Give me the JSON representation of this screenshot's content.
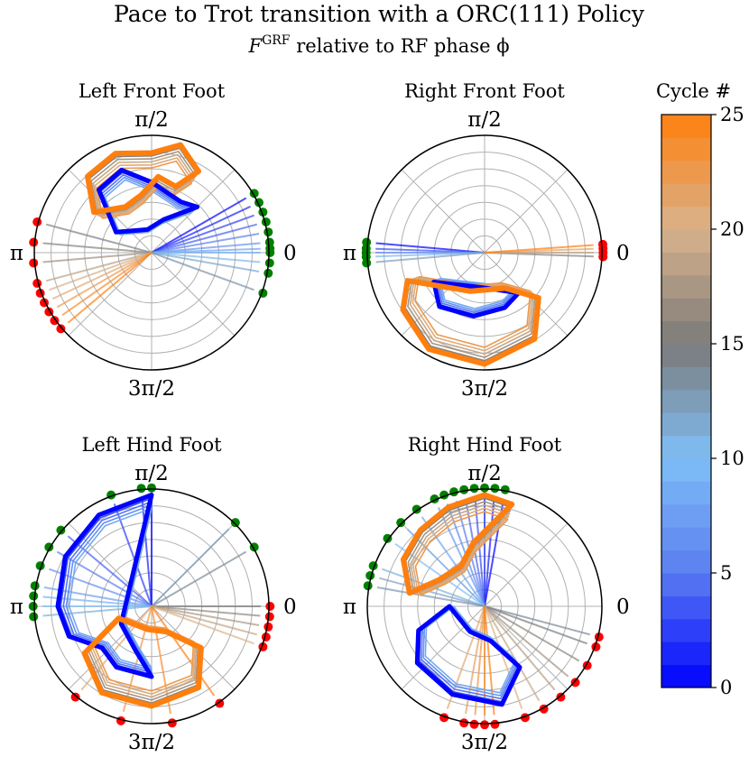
{
  "chart_data": {
    "type": "polar",
    "title": "Pace to Trot transition with a ORC(111) Policy",
    "subtitle": "F^GRF relative to RF phase ϕ",
    "subtitle_main": "F",
    "subtitle_sup": "GRF",
    "subtitle_rest": " relative to RF phase ϕ",
    "angle_labels": [
      "π/2",
      "π",
      "0",
      "3π/2"
    ],
    "grid": true,
    "colorbar": {
      "label": "Cycle #",
      "min": 0,
      "max": 25,
      "ticks": [
        0,
        5,
        10,
        15,
        20,
        25
      ],
      "colors": [
        "#0000ff",
        "#5a7df0",
        "#7fbff7",
        "#7a7a7a",
        "#d9b38c",
        "#ff7f0e"
      ]
    },
    "marker_colors": {
      "touchdown": "#008000",
      "liftoff": "#ff0000"
    },
    "panels": [
      {
        "title": "Left Front Foot",
        "touchdown_angles_deg": [
          30,
          25,
          20,
          15,
          10,
          5,
          2,
          0,
          -5,
          -10,
          -20
        ],
        "liftoff_angles_deg": [
          165,
          175,
          185,
          195,
          200,
          205,
          210,
          215,
          220
        ],
        "early_shape": [
          [
            60,
            0.5
          ],
          [
            90,
            0.6
          ],
          [
            110,
            0.75
          ],
          [
            130,
            0.7
          ],
          [
            150,
            0.35
          ],
          [
            100,
            0.2
          ],
          [
            70,
            0.3
          ],
          [
            45,
            0.55
          ]
        ],
        "late_shape": [
          [
            60,
            0.8
          ],
          [
            75,
            0.95
          ],
          [
            90,
            0.85
          ],
          [
            110,
            0.9
          ],
          [
            130,
            0.85
          ],
          [
            145,
            0.6
          ],
          [
            120,
            0.45
          ],
          [
            100,
            0.5
          ],
          [
            85,
            0.65
          ],
          [
            70,
            0.6
          ]
        ]
      },
      {
        "title": "Right Front Foot",
        "touchdown_angles_deg": [
          175,
          178,
          180,
          182,
          185
        ],
        "liftoff_angles_deg": [
          -2,
          0,
          2,
          4
        ],
        "early_shape": [
          [
            210,
            0.5
          ],
          [
            230,
            0.6
          ],
          [
            260,
            0.55
          ],
          [
            290,
            0.5
          ],
          [
            310,
            0.45
          ],
          [
            270,
            0.3
          ]
        ],
        "late_shape": [
          [
            200,
            0.7
          ],
          [
            215,
            0.85
          ],
          [
            240,
            0.95
          ],
          [
            270,
            0.95
          ],
          [
            300,
            0.85
          ],
          [
            320,
            0.6
          ],
          [
            300,
            0.35
          ],
          [
            250,
            0.35
          ]
        ]
      },
      {
        "title": "Left Hind Foot",
        "touchdown_angles_deg": [
          90,
          95,
          110,
          140,
          150,
          160,
          170,
          175,
          180,
          185,
          45,
          30
        ],
        "liftoff_angles_deg": [
          0,
          -5,
          -10,
          -15,
          -20,
          230,
          255,
          280,
          305
        ],
        "early_shape": [
          [
            90,
            0.95
          ],
          [
            120,
            0.9
          ],
          [
            150,
            0.85
          ],
          [
            180,
            0.8
          ],
          [
            200,
            0.75
          ],
          [
            220,
            0.55
          ],
          [
            240,
            0.6
          ],
          [
            270,
            0.6
          ],
          [
            250,
            0.4
          ],
          [
            210,
            0.3
          ]
        ],
        "late_shape": [
          [
            200,
            0.3
          ],
          [
            215,
            0.7
          ],
          [
            240,
            0.85
          ],
          [
            270,
            0.85
          ],
          [
            300,
            0.8
          ],
          [
            320,
            0.55
          ],
          [
            300,
            0.25
          ],
          [
            260,
            0.2
          ]
        ]
      },
      {
        "title": "Right Hind Foot",
        "touchdown_angles_deg": [
          80,
          85,
          90,
          95,
          100,
          105,
          110,
          115,
          125,
          135,
          145,
          160,
          165,
          170
        ],
        "liftoff_angles_deg": [
          -15,
          -20,
          -30,
          -40,
          -50,
          -60,
          -70,
          250,
          260,
          265,
          270,
          275
        ],
        "early_shape": [
          [
            180,
            0.3
          ],
          [
            200,
            0.6
          ],
          [
            220,
            0.75
          ],
          [
            250,
            0.8
          ],
          [
            280,
            0.85
          ],
          [
            300,
            0.6
          ],
          [
            280,
            0.3
          ],
          [
            240,
            0.25
          ]
        ],
        "late_shape": [
          [
            90,
            0.95
          ],
          [
            110,
            0.9
          ],
          [
            130,
            0.85
          ],
          [
            150,
            0.8
          ],
          [
            170,
            0.65
          ],
          [
            150,
            0.45
          ],
          [
            120,
            0.4
          ],
          [
            100,
            0.55
          ],
          [
            75,
            0.9
          ]
        ]
      }
    ]
  }
}
